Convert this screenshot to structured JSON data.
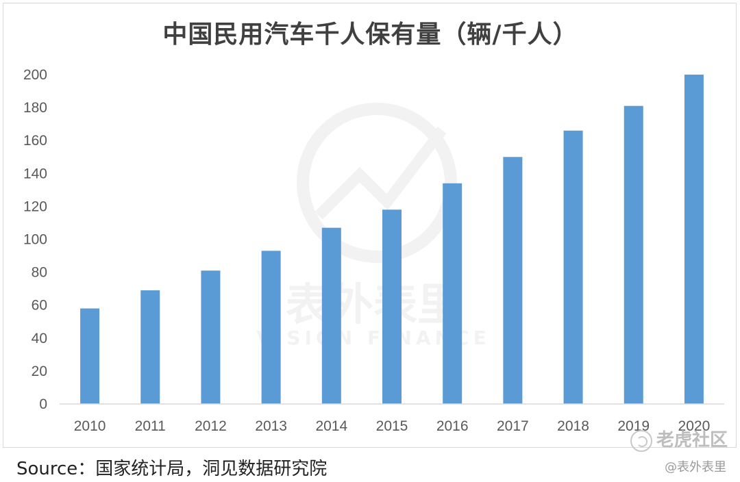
{
  "chart_data": {
    "type": "bar",
    "title": "中国民用汽车千人保有量（辆/千人）",
    "categories": [
      "2010",
      "2011",
      "2012",
      "2013",
      "2014",
      "2015",
      "2016",
      "2017",
      "2018",
      "2019",
      "2020"
    ],
    "series": [
      {
        "values": [
          58,
          69,
          81,
          93,
          107,
          118,
          134,
          150,
          166,
          181,
          200
        ]
      }
    ],
    "ylim": [
      0,
      200
    ],
    "yticks": [
      0,
      20,
      40,
      60,
      80,
      100,
      120,
      140,
      160,
      180,
      200
    ],
    "xlabel": "",
    "ylabel": "",
    "grid": false,
    "bar_color": "#5b9bd5"
  },
  "source": "Source：国家统计局，洞见数据研究院",
  "watermark": {
    "cn": "表外表里",
    "en": "VISION FINANCE"
  },
  "tiger_brand": "老虎社区",
  "handle": "@表外表里"
}
